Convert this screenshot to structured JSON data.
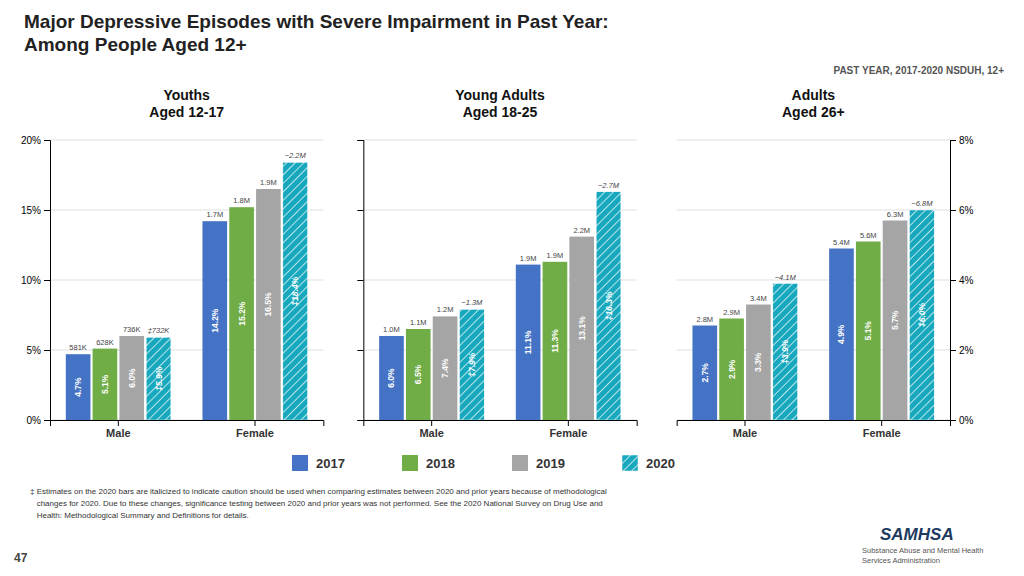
{
  "title": "Major Depressive Episodes with Severe Impairment in Past Year:\nAmong People Aged 12+",
  "subtitle": "PAST YEAR, 2017-2020  NSDUH, 12+",
  "footnote": "‡ Estimates on the 2020 bars are italicized to indicate caution should be used when comparing estimates between 2020 and prior years because of methodological\n   changes for 2020. Due to these changes, significance testing between 2020 and prior years was not performed. See the 2020 National Survey on Drug Use and\n   Health: Methodological Summary and Definitions for details.",
  "annotations": [
    "47",
    "SAMHSA",
    "Substance Abuse and Mental Health\nServices Administration"
  ],
  "chart_data": [
    {
      "type": "bar",
      "title": "Youths\nAged 12-17",
      "categories": [
        "Male",
        "Female"
      ],
      "series": [
        {
          "name": "2017",
          "color": "#4472c4",
          "values": [
            0.047,
            0.142
          ],
          "value_labels": [
            "4.7%",
            "14.2%"
          ],
          "count_labels": [
            "581K",
            "1.7M"
          ]
        },
        {
          "name": "2018",
          "color": "#70ad47",
          "values": [
            0.051,
            0.152
          ],
          "value_labels": [
            "5.1%",
            "15.2%"
          ],
          "count_labels": [
            "628K",
            "1.8M"
          ]
        },
        {
          "name": "2019",
          "color": "#a5a5a5",
          "values": [
            0.06,
            0.165
          ],
          "value_labels": [
            "6.0%",
            "16.5%"
          ],
          "count_labels": [
            "736K",
            "1.9M"
          ]
        },
        {
          "name": "2020",
          "color": "#17a8bd",
          "marker": "hatch",
          "values": [
            0.059,
            0.184
          ],
          "value_labels": [
            "‡5.9%",
            "‡18.4%"
          ],
          "count_labels": [
            "‡732K",
            "−2.2M"
          ]
        }
      ],
      "ylim": [
        0,
        0.2
      ],
      "yticks": [
        {
          "value": 0,
          "label": "0%"
        },
        {
          "value": 0.05,
          "label": "5%"
        },
        {
          "value": 0.1,
          "label": "10%"
        },
        {
          "value": 0.15,
          "label": "15%"
        },
        {
          "value": 0.2,
          "label": "20%"
        }
      ],
      "grid": true,
      "data_labels": true
    },
    {
      "type": "bar",
      "title": "Young Adults\nAged 18-25",
      "categories": [
        "Male",
        "Female"
      ],
      "series": [
        {
          "name": "2017",
          "color": "#4472c4",
          "values": [
            0.06,
            0.111
          ],
          "value_labels": [
            "6.0%",
            "11.1%"
          ],
          "count_labels": [
            "1.0M",
            "1.9M"
          ]
        },
        {
          "name": "2018",
          "color": "#70ad47",
          "values": [
            0.065,
            0.113
          ],
          "value_labels": [
            "6.5%",
            "11.3%"
          ],
          "count_labels": [
            "1.1M",
            "1.9M"
          ]
        },
        {
          "name": "2019",
          "color": "#a5a5a5",
          "values": [
            0.074,
            0.131
          ],
          "value_labels": [
            "7.4%",
            "13.1%"
          ],
          "count_labels": [
            "1.2M",
            "2.2M"
          ]
        },
        {
          "name": "2020",
          "color": "#17a8bd",
          "marker": "hatch",
          "values": [
            0.079,
            0.163
          ],
          "value_labels": [
            "‡7.9%",
            "‡16.3%"
          ],
          "count_labels": [
            "−1.3M",
            "−2.7M"
          ]
        }
      ],
      "ylim": [
        0,
        0.2
      ],
      "yticks": [
        0,
        0.05,
        0.1,
        0.15,
        0.2
      ],
      "grid": true,
      "data_labels": true,
      "tick_labels": "x"
    },
    {
      "type": "bar",
      "title": "Adults\nAged 26+",
      "categories": [
        "Male",
        "Female"
      ],
      "series": [
        {
          "name": "2017",
          "color": "#4472c4",
          "values": [
            0.027,
            0.049
          ],
          "value_labels": [
            "2.7%",
            "4.9%"
          ],
          "count_labels": [
            "2.8M",
            "5.4M"
          ]
        },
        {
          "name": "2018",
          "color": "#70ad47",
          "values": [
            0.029,
            0.051
          ],
          "value_labels": [
            "2.9%",
            "5.1%"
          ],
          "count_labels": [
            "2.9M",
            "5.6M"
          ]
        },
        {
          "name": "2019",
          "color": "#a5a5a5",
          "values": [
            0.033,
            0.057
          ],
          "value_labels": [
            "3.3%",
            "5.7%"
          ],
          "count_labels": [
            "3.4M",
            "6.3M"
          ]
        },
        {
          "name": "2020",
          "color": "#17a8bd",
          "marker": "hatch",
          "values": [
            0.039,
            0.06
          ],
          "value_labels": [
            "‡3.9%",
            "‡6.0%"
          ],
          "count_labels": [
            "−4.1M",
            "−6.8M"
          ]
        }
      ],
      "ylim": [
        0,
        0.08
      ],
      "yticks": [
        {
          "value": 0,
          "label": "0%"
        },
        {
          "value": 0.02,
          "label": "2%"
        },
        {
          "value": 0.04,
          "label": "4%"
        },
        {
          "value": 0.06,
          "label": "6%"
        },
        {
          "value": 0.08,
          "label": "8%"
        }
      ],
      "grid": true,
      "data_labels": true
    }
  ]
}
